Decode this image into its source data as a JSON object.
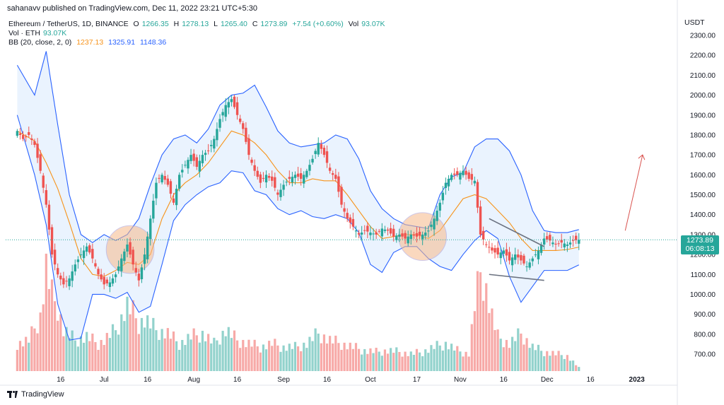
{
  "header": {
    "credit": "sahanavv published on TradingView.com, Dec 11, 2022 23:21 UTC+5:30"
  },
  "legend": {
    "symbol": "Ethereum / TetherUS, 1D, BINANCE",
    "o_label": "O",
    "o_value": "1266.35",
    "h_label": "H",
    "h_value": "1278.13",
    "l_label": "L",
    "l_value": "1265.40",
    "c_label": "C",
    "c_value": "1273.89",
    "change": "+7.54 (+0.60%)",
    "vol_label": "Vol",
    "vol_value": "93.07K",
    "vol_eth_label": "Vol · ETH",
    "vol_eth_value": "93.07K",
    "bb_label": "BB (20, close, 2, 0)",
    "bb_mid": "1237.13",
    "bb_upper": "1325.91",
    "bb_lower": "1148.36"
  },
  "axis": {
    "unit": "USDT",
    "price_tag": "1273.89",
    "countdown": "06:08:13"
  },
  "footer": {
    "brand": "TradingView"
  },
  "colors": {
    "up": "#26a69a",
    "down": "#ef5350",
    "bb_band": "#2962ff",
    "bb_basis": "#f7931a",
    "band_fill": "#e3effd",
    "highlight": "#f7b98a"
  },
  "chart_data": {
    "type": "candlestick",
    "symbol": "ETH/USDT",
    "interval": "1D",
    "ylim": [
      600,
      2400
    ],
    "y_ticks": [
      700,
      800,
      900,
      1000,
      1100,
      1200,
      1300,
      1400,
      1500,
      1600,
      1700,
      1800,
      1900,
      2000,
      2100,
      2200,
      2300
    ],
    "x_ticks": [
      "16",
      "Jul",
      "16",
      "Aug",
      "16",
      "Sep",
      "16",
      "Oct",
      "17",
      "Nov",
      "16",
      "Dec",
      "16",
      "2023"
    ],
    "x_tick_days": [
      15,
      30,
      45,
      61,
      76,
      92,
      107,
      122,
      138,
      153,
      168,
      183,
      198,
      214
    ],
    "last_close": 1273.89,
    "close_series": [
      [
        0,
        1820
      ],
      [
        2,
        1780
      ],
      [
        4,
        1800
      ],
      [
        6,
        1750
      ],
      [
        8,
        1620
      ],
      [
        10,
        1450
      ],
      [
        12,
        1200
      ],
      [
        14,
        1100
      ],
      [
        16,
        1050
      ],
      [
        18,
        1080
      ],
      [
        20,
        1150
      ],
      [
        22,
        1200
      ],
      [
        24,
        1240
      ],
      [
        26,
        1180
      ],
      [
        28,
        1100
      ],
      [
        30,
        1050
      ],
      [
        32,
        1060
      ],
      [
        34,
        1100
      ],
      [
        36,
        1180
      ],
      [
        38,
        1250
      ],
      [
        40,
        1150
      ],
      [
        42,
        1070
      ],
      [
        44,
        1200
      ],
      [
        46,
        1380
      ],
      [
        48,
        1560
      ],
      [
        50,
        1600
      ],
      [
        52,
        1550
      ],
      [
        54,
        1460
      ],
      [
        56,
        1600
      ],
      [
        58,
        1650
      ],
      [
        60,
        1700
      ],
      [
        62,
        1640
      ],
      [
        64,
        1700
      ],
      [
        66,
        1720
      ],
      [
        68,
        1780
      ],
      [
        70,
        1880
      ],
      [
        72,
        1950
      ],
      [
        74,
        1980
      ],
      [
        76,
        1900
      ],
      [
        78,
        1830
      ],
      [
        80,
        1700
      ],
      [
        82,
        1620
      ],
      [
        84,
        1560
      ],
      [
        86,
        1600
      ],
      [
        88,
        1570
      ],
      [
        90,
        1500
      ],
      [
        92,
        1550
      ],
      [
        94,
        1580
      ],
      [
        96,
        1600
      ],
      [
        98,
        1580
      ],
      [
        100,
        1620
      ],
      [
        102,
        1680
      ],
      [
        104,
        1760
      ],
      [
        106,
        1700
      ],
      [
        108,
        1620
      ],
      [
        110,
        1580
      ],
      [
        112,
        1450
      ],
      [
        114,
        1380
      ],
      [
        116,
        1340
      ],
      [
        118,
        1300
      ],
      [
        120,
        1320
      ],
      [
        122,
        1310
      ],
      [
        124,
        1300
      ],
      [
        126,
        1330
      ],
      [
        128,
        1320
      ],
      [
        130,
        1290
      ],
      [
        132,
        1300
      ],
      [
        134,
        1280
      ],
      [
        136,
        1300
      ],
      [
        138,
        1290
      ],
      [
        140,
        1300
      ],
      [
        142,
        1320
      ],
      [
        144,
        1380
      ],
      [
        146,
        1460
      ],
      [
        148,
        1560
      ],
      [
        150,
        1600
      ],
      [
        152,
        1600
      ],
      [
        154,
        1620
      ],
      [
        156,
        1580
      ],
      [
        158,
        1570
      ],
      [
        160,
        1300
      ],
      [
        162,
        1250
      ],
      [
        164,
        1220
      ],
      [
        166,
        1200
      ],
      [
        168,
        1220
      ],
      [
        170,
        1170
      ],
      [
        172,
        1200
      ],
      [
        174,
        1170
      ],
      [
        176,
        1140
      ],
      [
        178,
        1180
      ],
      [
        180,
        1220
      ],
      [
        182,
        1280
      ],
      [
        184,
        1270
      ],
      [
        186,
        1250
      ],
      [
        188,
        1260
      ],
      [
        190,
        1250
      ],
      [
        192,
        1270
      ],
      [
        194,
        1274
      ]
    ],
    "volume_series": [
      [
        0,
        40
      ],
      [
        4,
        45
      ],
      [
        8,
        80
      ],
      [
        10,
        150
      ],
      [
        12,
        110
      ],
      [
        14,
        95
      ],
      [
        16,
        60
      ],
      [
        20,
        45
      ],
      [
        24,
        50
      ],
      [
        28,
        40
      ],
      [
        30,
        45
      ],
      [
        34,
        60
      ],
      [
        38,
        95
      ],
      [
        40,
        85
      ],
      [
        42,
        70
      ],
      [
        44,
        75
      ],
      [
        48,
        60
      ],
      [
        52,
        55
      ],
      [
        56,
        40
      ],
      [
        60,
        50
      ],
      [
        64,
        55
      ],
      [
        68,
        40
      ],
      [
        72,
        60
      ],
      [
        76,
        45
      ],
      [
        80,
        40
      ],
      [
        84,
        35
      ],
      [
        88,
        40
      ],
      [
        92,
        35
      ],
      [
        96,
        35
      ],
      [
        100,
        40
      ],
      [
        104,
        55
      ],
      [
        108,
        45
      ],
      [
        112,
        40
      ],
      [
        116,
        35
      ],
      [
        120,
        30
      ],
      [
        124,
        28
      ],
      [
        128,
        30
      ],
      [
        132,
        28
      ],
      [
        136,
        25
      ],
      [
        140,
        28
      ],
      [
        144,
        35
      ],
      [
        148,
        40
      ],
      [
        152,
        30
      ],
      [
        156,
        25
      ],
      [
        158,
        95
      ],
      [
        160,
        145
      ],
      [
        162,
        120
      ],
      [
        164,
        80
      ],
      [
        166,
        50
      ],
      [
        170,
        40
      ],
      [
        174,
        55
      ],
      [
        178,
        35
      ],
      [
        182,
        28
      ],
      [
        186,
        25
      ],
      [
        190,
        22
      ],
      [
        194,
        5
      ]
    ],
    "bb_upper": [
      [
        0,
        2150
      ],
      [
        6,
        2000
      ],
      [
        10,
        2220
      ],
      [
        14,
        1850
      ],
      [
        18,
        1500
      ],
      [
        22,
        1300
      ],
      [
        26,
        1260
      ],
      [
        30,
        1300
      ],
      [
        34,
        1270
      ],
      [
        38,
        1300
      ],
      [
        42,
        1380
      ],
      [
        46,
        1550
      ],
      [
        50,
        1700
      ],
      [
        54,
        1780
      ],
      [
        58,
        1800
      ],
      [
        62,
        1760
      ],
      [
        66,
        1830
      ],
      [
        70,
        1950
      ],
      [
        74,
        2000
      ],
      [
        78,
        2010
      ],
      [
        82,
        2050
      ],
      [
        86,
        1940
      ],
      [
        90,
        1820
      ],
      [
        94,
        1760
      ],
      [
        98,
        1740
      ],
      [
        102,
        1750
      ],
      [
        106,
        1760
      ],
      [
        110,
        1800
      ],
      [
        114,
        1780
      ],
      [
        118,
        1680
      ],
      [
        122,
        1520
      ],
      [
        126,
        1430
      ],
      [
        130,
        1380
      ],
      [
        134,
        1350
      ],
      [
        138,
        1340
      ],
      [
        142,
        1330
      ],
      [
        146,
        1500
      ],
      [
        150,
        1590
      ],
      [
        154,
        1610
      ],
      [
        158,
        1740
      ],
      [
        162,
        1780
      ],
      [
        166,
        1780
      ],
      [
        170,
        1720
      ],
      [
        174,
        1600
      ],
      [
        178,
        1420
      ],
      [
        182,
        1320
      ],
      [
        186,
        1310
      ],
      [
        190,
        1310
      ],
      [
        194,
        1325
      ]
    ],
    "bb_lower": [
      [
        0,
        1900
      ],
      [
        6,
        1600
      ],
      [
        10,
        1350
      ],
      [
        14,
        950
      ],
      [
        18,
        770
      ],
      [
        22,
        780
      ],
      [
        26,
        1000
      ],
      [
        30,
        1000
      ],
      [
        34,
        980
      ],
      [
        38,
        1010
      ],
      [
        42,
        910
      ],
      [
        46,
        940
      ],
      [
        50,
        1150
      ],
      [
        54,
        1370
      ],
      [
        58,
        1450
      ],
      [
        62,
        1500
      ],
      [
        66,
        1540
      ],
      [
        70,
        1560
      ],
      [
        74,
        1620
      ],
      [
        78,
        1610
      ],
      [
        82,
        1520
      ],
      [
        86,
        1500
      ],
      [
        90,
        1430
      ],
      [
        94,
        1400
      ],
      [
        98,
        1420
      ],
      [
        102,
        1390
      ],
      [
        106,
        1380
      ],
      [
        110,
        1400
      ],
      [
        114,
        1380
      ],
      [
        118,
        1310
      ],
      [
        122,
        1150
      ],
      [
        126,
        1110
      ],
      [
        130,
        1210
      ],
      [
        134,
        1240
      ],
      [
        138,
        1240
      ],
      [
        142,
        1180
      ],
      [
        146,
        1140
      ],
      [
        150,
        1120
      ],
      [
        154,
        1200
      ],
      [
        158,
        1270
      ],
      [
        162,
        1320
      ],
      [
        166,
        1280
      ],
      [
        170,
        1090
      ],
      [
        174,
        960
      ],
      [
        178,
        1040
      ],
      [
        182,
        1120
      ],
      [
        186,
        1120
      ],
      [
        190,
        1120
      ],
      [
        194,
        1148
      ]
    ],
    "bb_basis": [
      [
        0,
        1820
      ],
      [
        6,
        1770
      ],
      [
        10,
        1660
      ],
      [
        14,
        1530
      ],
      [
        18,
        1360
      ],
      [
        22,
        1180
      ],
      [
        26,
        1100
      ],
      [
        30,
        1090
      ],
      [
        34,
        1120
      ],
      [
        38,
        1160
      ],
      [
        42,
        1150
      ],
      [
        46,
        1200
      ],
      [
        50,
        1380
      ],
      [
        54,
        1500
      ],
      [
        58,
        1560
      ],
      [
        62,
        1600
      ],
      [
        66,
        1660
      ],
      [
        70,
        1740
      ],
      [
        74,
        1820
      ],
      [
        78,
        1800
      ],
      [
        82,
        1760
      ],
      [
        86,
        1700
      ],
      [
        90,
        1620
      ],
      [
        94,
        1560
      ],
      [
        98,
        1560
      ],
      [
        102,
        1580
      ],
      [
        106,
        1570
      ],
      [
        110,
        1570
      ],
      [
        114,
        1500
      ],
      [
        118,
        1420
      ],
      [
        122,
        1340
      ],
      [
        126,
        1280
      ],
      [
        130,
        1290
      ],
      [
        134,
        1300
      ],
      [
        138,
        1300
      ],
      [
        142,
        1280
      ],
      [
        146,
        1320
      ],
      [
        150,
        1400
      ],
      [
        154,
        1480
      ],
      [
        158,
        1500
      ],
      [
        162,
        1480
      ],
      [
        166,
        1420
      ],
      [
        170,
        1360
      ],
      [
        174,
        1280
      ],
      [
        178,
        1220
      ],
      [
        182,
        1220
      ],
      [
        186,
        1220
      ],
      [
        190,
        1225
      ],
      [
        194,
        1237
      ]
    ],
    "drawings": {
      "circles": [
        {
          "day": 39,
          "price": 1225,
          "r_price": 120
        },
        {
          "day": 140,
          "price": 1290,
          "r_price": 120
        }
      ],
      "wedge_upper": [
        [
          163,
          1380
        ],
        [
          182,
          1240
        ]
      ],
      "wedge_lower": [
        [
          163,
          1100
        ],
        [
          182,
          1070
        ]
      ],
      "arrow": [
        [
          210,
          1320
        ],
        [
          216,
          1700
        ]
      ]
    }
  }
}
